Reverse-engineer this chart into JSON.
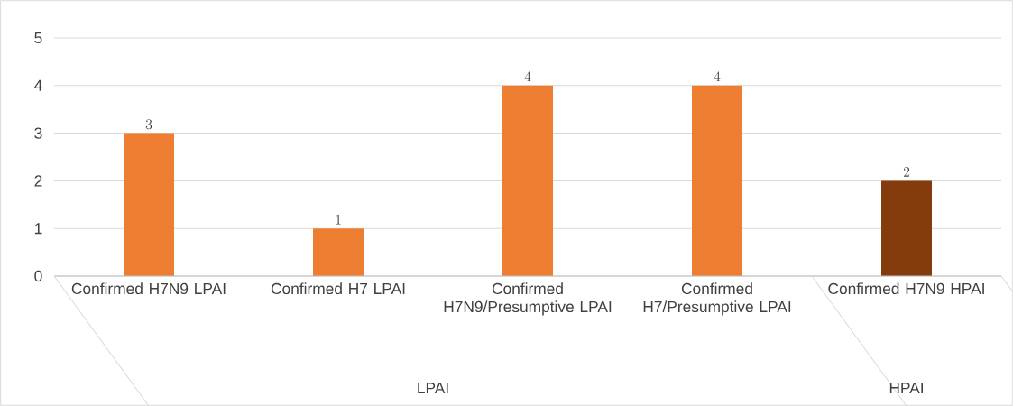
{
  "chart_data": {
    "type": "bar",
    "categories": [
      "Confirmed H7N9 LPAI",
      "Confirmed H7 LPAI",
      "Confirmed H7N9/Presumptive LPAI",
      "Confirmed H7/Presumptive LPAI",
      "Confirmed H7N9 HPAI"
    ],
    "values": [
      3,
      1,
      4,
      4,
      2
    ],
    "colors": [
      "#ed7d31",
      "#ed7d31",
      "#ed7d31",
      "#ed7d31",
      "#843c0c"
    ],
    "ylim": [
      0,
      5
    ],
    "yticks": [
      0,
      1,
      2,
      3,
      4,
      5
    ],
    "grid": "y",
    "data_labels": true,
    "annotations": [
      "LPAI",
      "HPAI"
    ]
  }
}
